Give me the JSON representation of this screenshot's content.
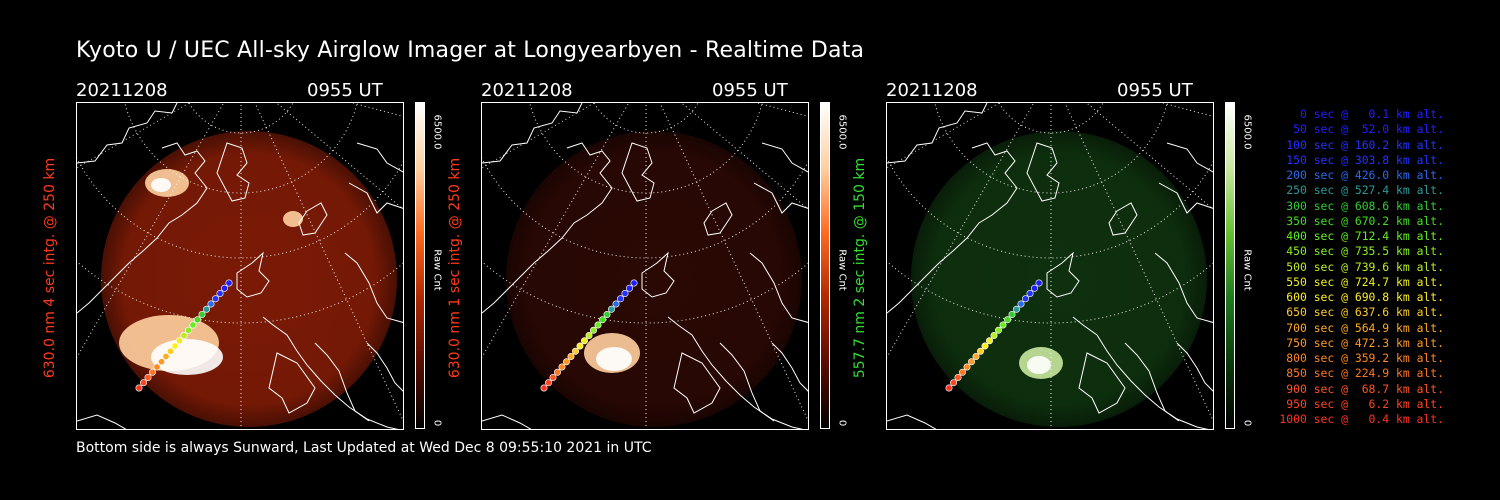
{
  "title": "Kyoto U / UEC All-sky Airglow Imager at Longyearbyen - Realtime Data",
  "footer": "Bottom side is always Sunward, Last Updated at Wed Dec  8 09:55:10 2021 in UTC",
  "panels": [
    {
      "date": "20211208",
      "time": "0955 UT",
      "side_label": "630.0 nm 4 sec intg. @ 250 km",
      "label_color": "#ff3a1a",
      "colorbar_max": "6500.0",
      "colorbar_min": "0",
      "colorbar_title": "Raw Cnt",
      "colormap": [
        "#000000",
        "#5a0c00",
        "#b02800",
        "#ff6a20",
        "#ffd0a0",
        "#ffffff"
      ],
      "glow_color": "#7a1a06"
    },
    {
      "date": "20211208",
      "time": "0955 UT",
      "side_label": "630.0 nm 1 sec intg. @ 250 km",
      "label_color": "#ff3a1a",
      "colorbar_max": "6500.0",
      "colorbar_min": "0",
      "colorbar_title": "Raw Cnt",
      "colormap": [
        "#000000",
        "#5a0c00",
        "#b02800",
        "#ff6a20",
        "#ffd0a0",
        "#ffffff"
      ],
      "glow_color": "#2a0804"
    },
    {
      "date": "20211208",
      "time": "0955 UT",
      "side_label": "557.7 nm 2 sec intg. @ 150 km",
      "label_color": "#33dd33",
      "colorbar_max": "6500.0",
      "colorbar_min": "0",
      "colorbar_title": "Raw Cnt",
      "colormap": [
        "#000000",
        "#0a3a0a",
        "#1f7a1f",
        "#66c033",
        "#c8e8a0",
        "#ffffff"
      ],
      "glow_color": "#0e300e"
    }
  ],
  "legend": [
    {
      "text": "0 sec @   0.1 km alt.",
      "color": "#2020ff"
    },
    {
      "text": "50 sec @  52.0 km alt.",
      "color": "#2020ff"
    },
    {
      "text": "100 sec @ 160.2 km alt.",
      "color": "#2233ff"
    },
    {
      "text": "150 sec @ 303.8 km alt.",
      "color": "#2233ff"
    },
    {
      "text": "200 sec @ 426.0 km alt.",
      "color": "#2a6aee"
    },
    {
      "text": "250 sec @ 527.4 km alt.",
      "color": "#2a9a9a"
    },
    {
      "text": "300 sec @ 608.6 km alt.",
      "color": "#33cc33"
    },
    {
      "text": "350 sec @ 670.2 km alt.",
      "color": "#44dd22"
    },
    {
      "text": "400 sec @ 712.4 km alt.",
      "color": "#66ee22"
    },
    {
      "text": "450 sec @ 735.5 km alt.",
      "color": "#88ee22"
    },
    {
      "text": "500 sec @ 739.6 km alt.",
      "color": "#bbee22"
    },
    {
      "text": "550 sec @ 724.7 km alt.",
      "color": "#eeee22"
    },
    {
      "text": "600 sec @ 690.8 km alt.",
      "color": "#ffee22"
    },
    {
      "text": "650 sec @ 637.6 km alt.",
      "color": "#ffcc22"
    },
    {
      "text": "700 sec @ 564.9 km alt.",
      "color": "#ffaa22"
    },
    {
      "text": "750 sec @ 472.3 km alt.",
      "color": "#ff9922"
    },
    {
      "text": "800 sec @ 359.2 km alt.",
      "color": "#ff8822"
    },
    {
      "text": "850 sec @ 224.9 km alt.",
      "color": "#ff7722"
    },
    {
      "text": "900 sec @  68.7 km alt.",
      "color": "#ff5522"
    },
    {
      "text": "950 sec @   6.2 km alt.",
      "color": "#ff4422"
    },
    {
      "text": "1000 sec @   0.4 km alt.",
      "color": "#ff3322"
    }
  ]
}
